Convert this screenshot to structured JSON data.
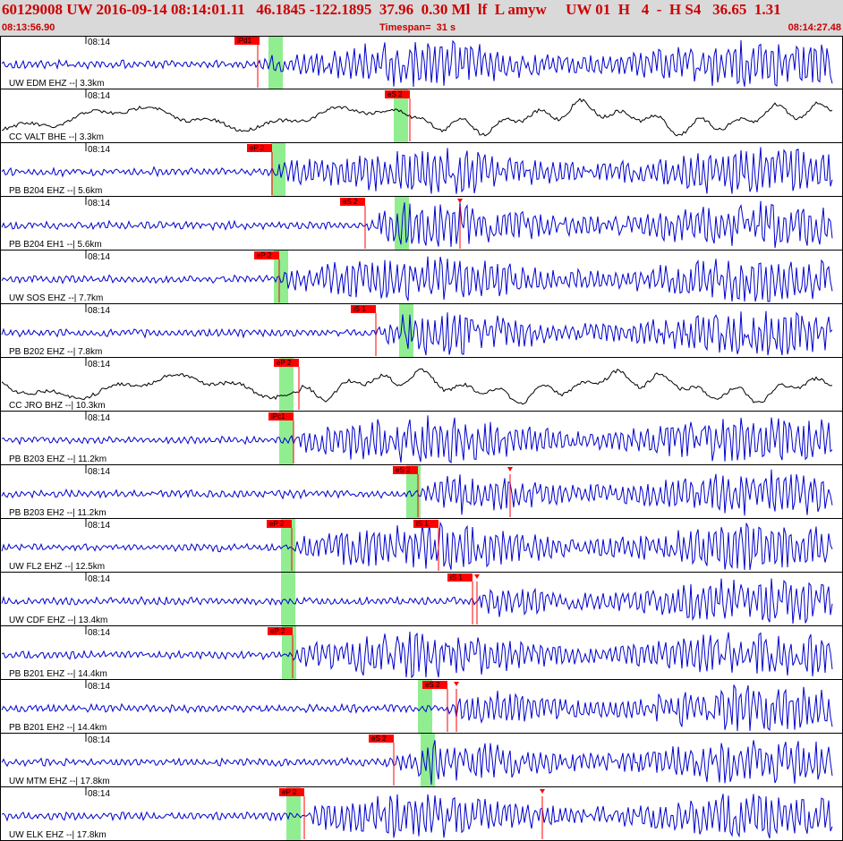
{
  "header": {
    "title": "60129008 UW 2016-09-14 08:14:01.11   46.1845 -122.1895  37.96  0.30 Ml  lf  L amyw     UW 01  H   4  -  H S4   36.65  1.31",
    "start_time": "08:13:56.90",
    "timespan": "Timespan=  31 s",
    "end_time": "08:14:27.48"
  },
  "colors": {
    "header_bg": "#d9d9d9",
    "header_text": "#cc0000",
    "trace_vel": "#0000cc",
    "trace_bb": "#000000",
    "pick": "#ff0000",
    "predicted_window": "#90ee90"
  },
  "traces": [
    {
      "label": "UW EDM EHZ --| 3.3km",
      "time": "08:14",
      "color": "vel",
      "picks": [
        {
          "text": "iPd1",
          "x": 288,
          "tab": "right"
        }
      ],
      "green": [
        300,
        316
      ]
    },
    {
      "label": "CC VALT BHE --| 3.3km",
      "time": "08:14",
      "color": "bb",
      "picks": [
        {
          "text": "eS 2",
          "x": 458,
          "tab": "left"
        }
      ],
      "green": [
        440,
        456
      ]
    },
    {
      "label": "PB B204 EHZ --| 5.6km",
      "time": "08:14",
      "color": "vel",
      "picks": [
        {
          "text": "eP 2",
          "x": 304,
          "tab": "left"
        }
      ],
      "green": [
        303,
        319
      ]
    },
    {
      "label": "PB B204 EH1 --| 5.6km",
      "time": "08:14",
      "color": "vel",
      "picks": [
        {
          "text": "eS 2",
          "x": 408,
          "tab": "left"
        },
        {
          "text": "",
          "x": 514,
          "tab": "none"
        }
      ],
      "green": [
        441,
        457
      ]
    },
    {
      "label": "UW SOS EHZ --| 7.7km",
      "time": "08:14",
      "color": "vel",
      "picks": [
        {
          "text": "eP 2",
          "x": 312,
          "tab": "left"
        }
      ],
      "green": [
        306,
        322
      ]
    },
    {
      "label": "PB B202 EHZ --| 7.8km",
      "time": "08:14",
      "color": "vel",
      "picks": [
        {
          "text": "iS 1",
          "x": 420,
          "tab": "left"
        }
      ],
      "green": [
        446,
        462
      ]
    },
    {
      "label": "CC JRO BHZ --| 10.3km",
      "time": "08:14",
      "color": "bb",
      "picks": [
        {
          "text": "eP 2",
          "x": 334,
          "tab": "left"
        }
      ],
      "green": [
        312,
        328
      ]
    },
    {
      "label": "PB B203 EHZ --| 11.2km",
      "time": "08:14",
      "color": "vel",
      "picks": [
        {
          "text": "iPc1",
          "x": 328,
          "tab": "left"
        }
      ],
      "green": [
        312,
        328
      ]
    },
    {
      "label": "PB B203 EH2 --| 11.2km",
      "time": "08:14",
      "color": "vel",
      "picks": [
        {
          "text": "eS 2",
          "x": 467,
          "tab": "left"
        },
        {
          "text": "",
          "x": 570,
          "tab": "none"
        }
      ],
      "green": [
        454,
        470
      ]
    },
    {
      "label": "UW FL2 EHZ --| 12.5km",
      "time": "08:14",
      "color": "vel",
      "picks": [
        {
          "text": "eP 2",
          "x": 326,
          "tab": "left"
        },
        {
          "text": "iS 1",
          "x": 490,
          "tab": "left"
        }
      ],
      "green": [
        314,
        330
      ]
    },
    {
      "label": "UW CDF EHZ --| 13.4km",
      "time": "08:14",
      "color": "vel",
      "picks": [
        {
          "text": "iS 1",
          "x": 528,
          "tab": "left"
        },
        {
          "text": "",
          "x": 533,
          "tab": "none"
        }
      ],
      "green": [
        314,
        330
      ]
    },
    {
      "label": "PB B201 EHZ --| 14.4km",
      "time": "08:14",
      "color": "vel",
      "picks": [
        {
          "text": "eP 2",
          "x": 327,
          "tab": "left"
        }
      ],
      "green": [
        315,
        331
      ]
    },
    {
      "label": "PB B201 EH2 --| 14.4km",
      "time": "08:14",
      "color": "vel",
      "picks": [
        {
          "text": "eS 2",
          "x": 500,
          "tab": "left"
        },
        {
          "text": "",
          "x": 510,
          "tab": "none"
        }
      ],
      "green": [
        467,
        483
      ]
    },
    {
      "label": "UW MTM EHZ --| 17.8km",
      "time": "08:14",
      "color": "vel",
      "picks": [
        {
          "text": "eS 2",
          "x": 440,
          "tab": "left"
        }
      ],
      "green": [
        470,
        486
      ]
    },
    {
      "label": "UW ELK EHZ --| 17.8km",
      "time": "08:14",
      "color": "vel",
      "picks": [
        {
          "text": "eP 2",
          "x": 340,
          "tab": "left"
        },
        {
          "text": "",
          "x": 606,
          "tab": "none"
        }
      ],
      "green": [
        320,
        336
      ]
    }
  ]
}
